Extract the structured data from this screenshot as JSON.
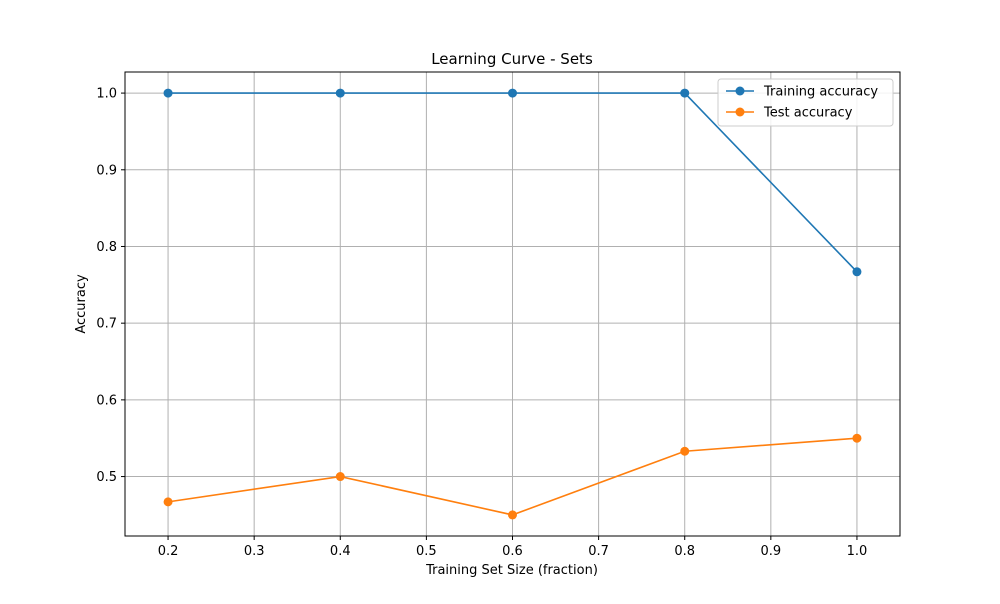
{
  "chart_data": {
    "type": "line",
    "title": "Learning Curve - Sets",
    "xlabel": "Training Set Size (fraction)",
    "ylabel": "Accuracy",
    "xlim": [
      0.15,
      1.05
    ],
    "ylim": [
      0.4225,
      1.0275
    ],
    "xticks": [
      0.2,
      0.3,
      0.4,
      0.5,
      0.6,
      0.7,
      0.8,
      0.9,
      1.0
    ],
    "xtick_labels": [
      "0.2",
      "0.3",
      "0.4",
      "0.5",
      "0.6",
      "0.7",
      "0.8",
      "0.9",
      "1.0"
    ],
    "yticks": [
      0.5,
      0.6,
      0.7,
      0.8,
      0.9,
      1.0
    ],
    "ytick_labels": [
      "0.5",
      "0.6",
      "0.7",
      "0.8",
      "0.9",
      "1.0"
    ],
    "grid": true,
    "legend_position": "top-right",
    "x": [
      0.2,
      0.4,
      0.6,
      0.8,
      1.0
    ],
    "series": [
      {
        "name": "Training accuracy",
        "color": "#1f77b4",
        "marker": "circle",
        "values": [
          1.0,
          1.0,
          1.0,
          1.0,
          0.767
        ]
      },
      {
        "name": "Test accuracy",
        "color": "#ff7f0e",
        "marker": "circle",
        "values": [
          0.467,
          0.5,
          0.45,
          0.533,
          0.55
        ]
      }
    ]
  }
}
